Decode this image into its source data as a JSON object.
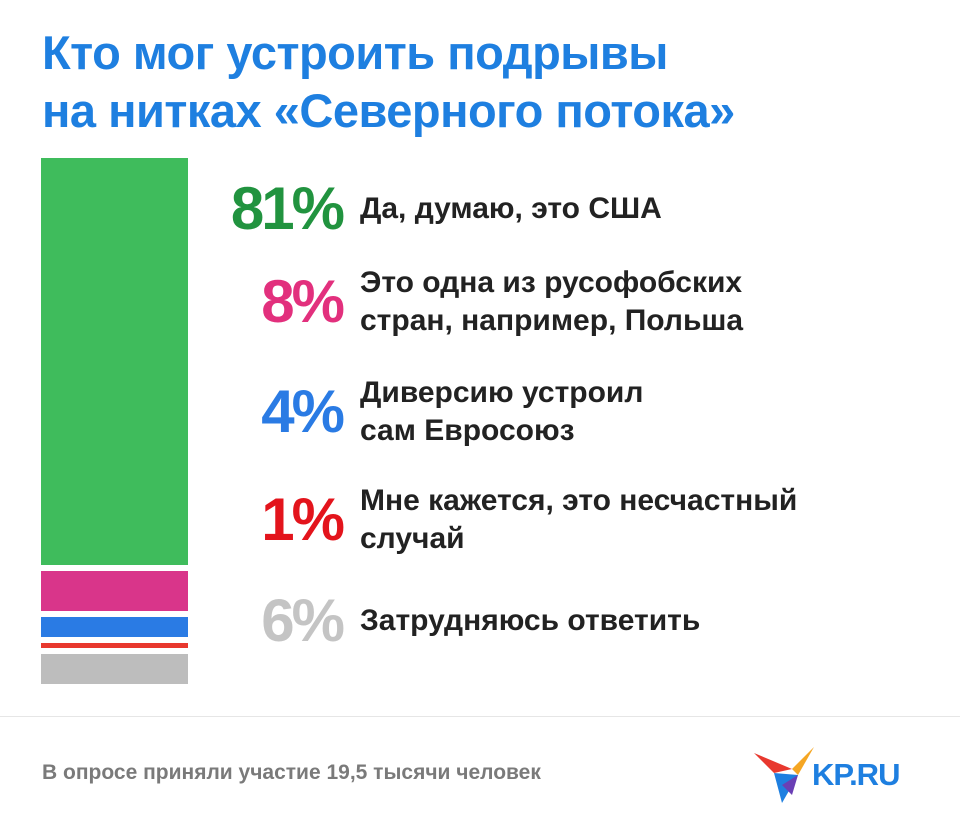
{
  "title": {
    "line1": "Кто мог устроить подрывы",
    "line2": "на нитках «Северного потока»"
  },
  "chart_data": {
    "type": "bar",
    "stacked": true,
    "unit": "%",
    "categories": [
      "Да, думаю, это США",
      "Это одна из русофобских\nстран, например, Польша",
      "Диверсию устроил\nсам Евросоюз",
      "Мне кажется, это несчастный\nслучай",
      "Затрудняюсь ответить"
    ],
    "values": [
      81,
      8,
      4,
      1,
      6
    ],
    "labels": [
      "81%",
      "8%",
      "4%",
      "1%",
      "6%"
    ],
    "colors": [
      "#3fbc5c",
      "#d9358a",
      "#2a7be4",
      "#e8382e",
      "#bdbdbd"
    ],
    "label_colors": [
      "#21933f",
      "#e2307d",
      "#2a7be4",
      "#e3141c",
      "#c4c4c4"
    ]
  },
  "footnote": "В опросе приняли участие 19,5 тысячи человек",
  "logo": {
    "text": "KP.RU",
    "icon": "kp-bird-icon",
    "colors": [
      "#e8382e",
      "#f5a623",
      "#1e7fe0",
      "#6a3fb5"
    ]
  }
}
